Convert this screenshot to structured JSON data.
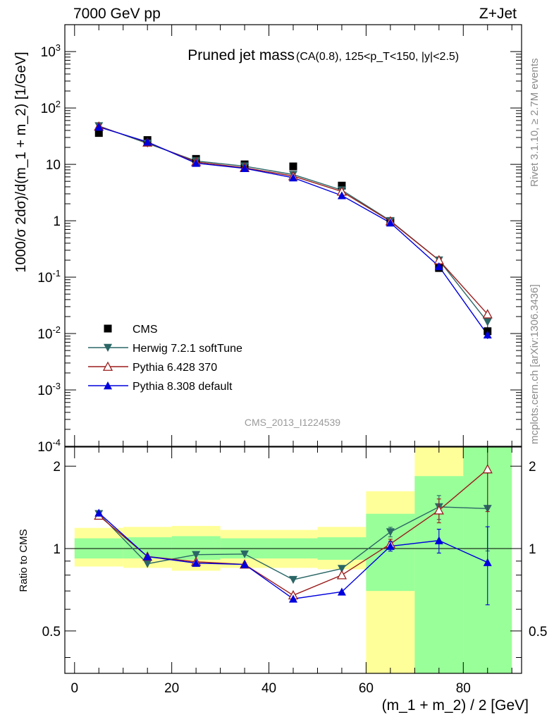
{
  "header": {
    "left": "7000 GeV pp",
    "right": "Z+Jet"
  },
  "side_text": {
    "rivet": "Rivet 3.1.10, ≥ 2.7M events",
    "mcplots": "mcplots.cern.ch [arXiv:1306.3436]"
  },
  "watermark": "CMS_2013_I1224539",
  "chart_data": {
    "type": "scatter",
    "title": "Pruned jet mass",
    "subtitle": "(CA(0.8), 125<p_T<150, |y|<2.5)",
    "xlabel": "(m_1 + m_2) / 2 [GeV]",
    "ylabel": "1000/σ 2dσ)/d(m_1 + m_2) [1/GeV]",
    "ratio_ylabel": "Ratio to CMS",
    "xlim": [
      -2,
      92
    ],
    "ylim": [
      0.0001,
      3000
    ],
    "y_scale": "log",
    "ratio_ylim": [
      0.35,
      2.35
    ],
    "ratio_scale": "log",
    "x_ticks": [
      "0",
      "20",
      "40",
      "60",
      "80"
    ],
    "y_ticks": [
      "10^-4",
      "10^-3",
      "10^-2",
      "10^-1",
      "1",
      "10",
      "10^2",
      "10^3"
    ],
    "ratio_ticks": [
      "0.5",
      "1",
      "2"
    ],
    "legend_position": "bottom-left",
    "x": [
      5,
      15,
      25,
      35,
      45,
      55,
      65,
      75,
      85
    ],
    "series": [
      {
        "name": "CMS",
        "color": "#000000",
        "marker": "square",
        "values": [
          36,
          27,
          12.5,
          10,
          9.2,
          4.2,
          0.95,
          0.145,
          0.011
        ],
        "errors": [
          0,
          0,
          0,
          0,
          0,
          0,
          0,
          0.008,
          0.003
        ]
      },
      {
        "name": "Herwig 7.2.1 softTune",
        "color": "#2b6666",
        "marker": "triangle-down",
        "values": [
          48,
          23.5,
          11.5,
          9.3,
          6.6,
          3.5,
          1.0,
          0.2,
          0.016
        ],
        "ratio": [
          1.34,
          0.88,
          0.95,
          0.955,
          0.77,
          0.845,
          1.15,
          1.42,
          1.4
        ]
      },
      {
        "name": "Pythia 6.428 370",
        "color": "#9b1c1c",
        "marker": "triangle-open",
        "values": [
          47,
          24.5,
          11,
          8.7,
          6.2,
          3.3,
          0.98,
          0.2,
          0.022
        ],
        "ratio": [
          1.32,
          0.935,
          0.895,
          0.875,
          0.675,
          0.8,
          1.04,
          1.38,
          1.95
        ]
      },
      {
        "name": "Pythia 8.308 default",
        "color": "#0000dd",
        "marker": "triangle",
        "values": [
          46,
          25,
          10.5,
          8.5,
          5.8,
          2.8,
          0.92,
          0.155,
          0.0095
        ],
        "ratio": [
          1.35,
          0.935,
          0.885,
          0.875,
          0.655,
          0.695,
          1.02,
          1.07,
          0.89
        ]
      }
    ],
    "uncertainty_bands": {
      "x_edges": [
        0,
        10,
        20,
        30,
        40,
        50,
        60,
        70,
        80,
        90
      ],
      "yellow": [
        [
          0.86,
          1.19
        ],
        [
          0.85,
          1.2
        ],
        [
          0.83,
          1.21
        ],
        [
          0.85,
          1.17
        ],
        [
          0.85,
          1.17
        ],
        [
          0.84,
          1.2
        ],
        [
          0.35,
          1.62
        ],
        [
          0.35,
          2.35
        ],
        [
          0.35,
          2.35
        ]
      ],
      "green": [
        [
          0.92,
          1.09
        ],
        [
          0.92,
          1.1
        ],
        [
          0.91,
          1.11
        ],
        [
          0.92,
          1.09
        ],
        [
          0.92,
          1.09
        ],
        [
          0.91,
          1.1
        ],
        [
          0.7,
          1.34
        ],
        [
          0.35,
          1.84
        ],
        [
          0.35,
          2.35
        ]
      ]
    },
    "ratio_errors": [
      [
        0,
        0
      ],
      [
        0,
        0
      ],
      [
        0,
        0
      ],
      [
        0,
        0
      ],
      [
        0,
        0
      ],
      [
        0,
        0
      ],
      [
        0.04,
        0.04
      ],
      [
        0.1,
        0.1
      ],
      [
        0.3,
        0.35
      ]
    ]
  }
}
